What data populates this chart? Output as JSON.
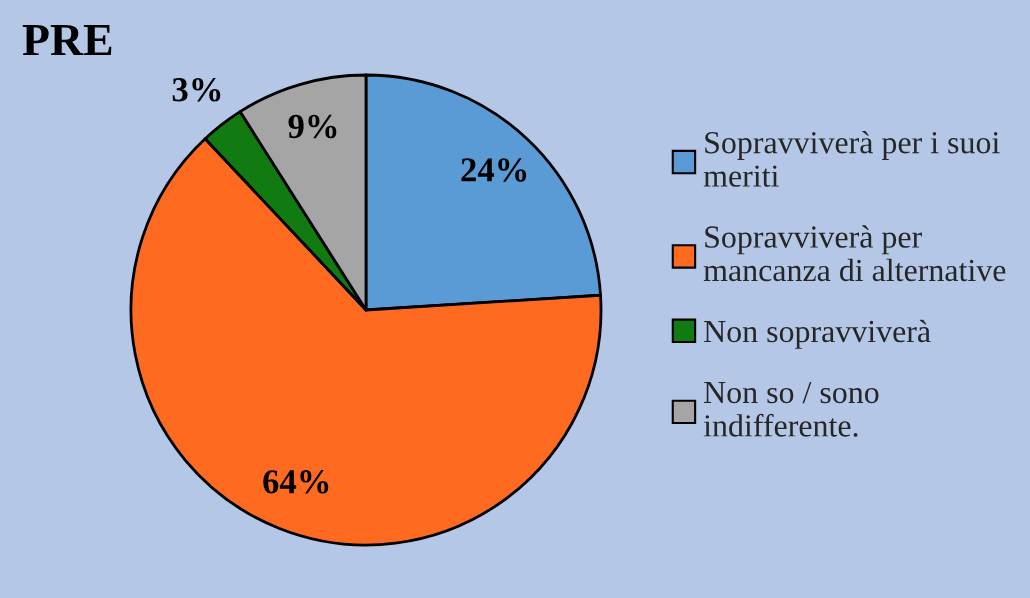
{
  "chart_data": {
    "type": "pie",
    "title": "PRE",
    "categories": [
      "Sopravviverà per i suoi\nmeriti",
      "Sopravviverà per\nmancanza di alternative",
      "Non sopravviverà",
      "Non so / sono\nindifferente."
    ],
    "values": [
      24,
      64,
      3,
      9
    ],
    "colors": [
      "#5b9bd5",
      "#ff6a21",
      "#117a11",
      "#a5a5a5"
    ],
    "value_labels": [
      "24%",
      "64%",
      "3%",
      "9%"
    ],
    "legend": "right"
  }
}
